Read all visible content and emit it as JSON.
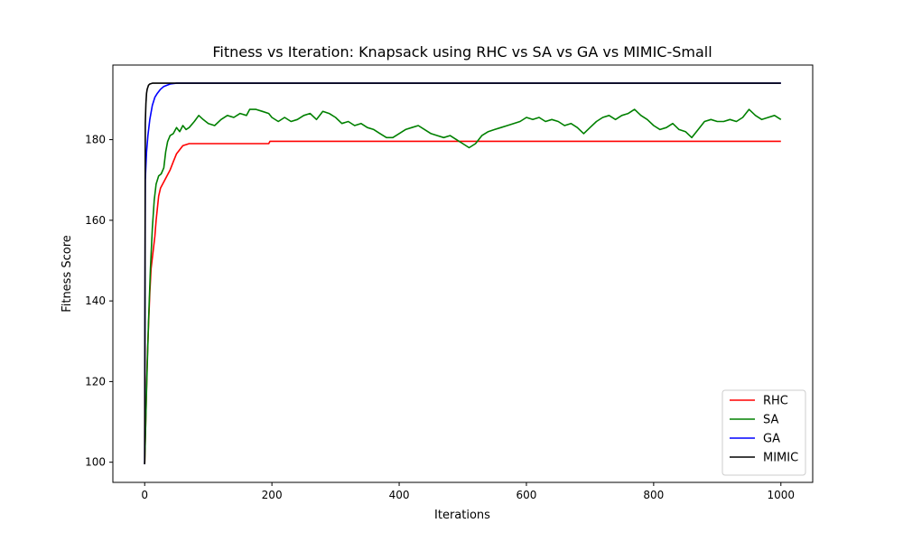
{
  "chart_data": {
    "type": "line",
    "title": "Fitness vs Iteration: Knapsack using RHC vs SA vs GA vs MIMIC-Small",
    "xlabel": "Iterations",
    "ylabel": "Fitness Score",
    "xlim": [
      -50,
      1050
    ],
    "ylim": [
      95,
      198.5
    ],
    "xticks": [
      0,
      200,
      400,
      600,
      800,
      1000
    ],
    "yticks": [
      100,
      120,
      140,
      160,
      180
    ],
    "grid": false,
    "legend_position": "lower-right",
    "series": [
      {
        "name": "RHC",
        "color": "#ff0000",
        "points": [
          [
            0,
            99.5
          ],
          [
            2,
            112
          ],
          [
            4,
            125
          ],
          [
            6,
            134
          ],
          [
            8,
            142
          ],
          [
            10,
            148
          ],
          [
            13,
            152
          ],
          [
            16,
            156
          ],
          [
            18,
            160
          ],
          [
            20,
            163
          ],
          [
            22,
            166
          ],
          [
            25,
            168
          ],
          [
            30,
            169.5
          ],
          [
            35,
            171
          ],
          [
            40,
            172.5
          ],
          [
            45,
            174.5
          ],
          [
            50,
            176.5
          ],
          [
            55,
            177.5
          ],
          [
            60,
            178.5
          ],
          [
            70,
            179
          ],
          [
            100,
            179
          ],
          [
            150,
            179
          ],
          [
            195,
            179
          ],
          [
            197,
            179.6
          ],
          [
            300,
            179.6
          ],
          [
            500,
            179.6
          ],
          [
            800,
            179.6
          ],
          [
            1000,
            179.6
          ]
        ]
      },
      {
        "name": "SA",
        "color": "#008000",
        "points": [
          [
            0,
            99.5
          ],
          [
            3,
            118
          ],
          [
            6,
            135
          ],
          [
            9,
            148
          ],
          [
            12,
            158
          ],
          [
            15,
            165
          ],
          [
            18,
            169
          ],
          [
            22,
            171
          ],
          [
            26,
            171.5
          ],
          [
            30,
            173
          ],
          [
            33,
            177
          ],
          [
            36,
            179.5
          ],
          [
            40,
            181
          ],
          [
            45,
            181.5
          ],
          [
            50,
            183
          ],
          [
            55,
            182
          ],
          [
            60,
            183.5
          ],
          [
            65,
            182.5
          ],
          [
            70,
            183
          ],
          [
            78,
            184.5
          ],
          [
            85,
            186
          ],
          [
            92,
            185
          ],
          [
            100,
            184
          ],
          [
            110,
            183.5
          ],
          [
            120,
            185
          ],
          [
            130,
            186
          ],
          [
            140,
            185.5
          ],
          [
            150,
            186.5
          ],
          [
            160,
            186
          ],
          [
            165,
            187.5
          ],
          [
            175,
            187.5
          ],
          [
            185,
            187
          ],
          [
            195,
            186.5
          ],
          [
            200,
            185.5
          ],
          [
            210,
            184.5
          ],
          [
            220,
            185.5
          ],
          [
            230,
            184.5
          ],
          [
            240,
            185
          ],
          [
            250,
            186
          ],
          [
            260,
            186.5
          ],
          [
            270,
            185
          ],
          [
            280,
            187
          ],
          [
            290,
            186.5
          ],
          [
            300,
            185.5
          ],
          [
            310,
            184
          ],
          [
            320,
            184.5
          ],
          [
            330,
            183.5
          ],
          [
            340,
            184
          ],
          [
            350,
            183
          ],
          [
            360,
            182.5
          ],
          [
            370,
            181.5
          ],
          [
            380,
            180.5
          ],
          [
            390,
            180.5
          ],
          [
            400,
            181.5
          ],
          [
            410,
            182.5
          ],
          [
            420,
            183
          ],
          [
            430,
            183.5
          ],
          [
            440,
            182.5
          ],
          [
            450,
            181.5
          ],
          [
            460,
            181
          ],
          [
            470,
            180.5
          ],
          [
            480,
            181
          ],
          [
            490,
            180
          ],
          [
            500,
            179
          ],
          [
            510,
            178
          ],
          [
            520,
            179
          ],
          [
            530,
            181
          ],
          [
            540,
            182
          ],
          [
            550,
            182.5
          ],
          [
            560,
            183
          ],
          [
            570,
            183.5
          ],
          [
            580,
            184
          ],
          [
            590,
            184.5
          ],
          [
            600,
            185.5
          ],
          [
            610,
            185
          ],
          [
            620,
            185.5
          ],
          [
            630,
            184.5
          ],
          [
            640,
            185
          ],
          [
            650,
            184.5
          ],
          [
            660,
            183.5
          ],
          [
            670,
            184
          ],
          [
            680,
            183
          ],
          [
            690,
            181.5
          ],
          [
            700,
            183
          ],
          [
            710,
            184.5
          ],
          [
            720,
            185.5
          ],
          [
            730,
            186
          ],
          [
            740,
            185
          ],
          [
            750,
            186
          ],
          [
            760,
            186.5
          ],
          [
            770,
            187.5
          ],
          [
            780,
            186
          ],
          [
            790,
            185
          ],
          [
            800,
            183.5
          ],
          [
            810,
            182.5
          ],
          [
            820,
            183
          ],
          [
            830,
            184
          ],
          [
            840,
            182.5
          ],
          [
            850,
            182
          ],
          [
            860,
            180.5
          ],
          [
            870,
            182.5
          ],
          [
            880,
            184.5
          ],
          [
            890,
            185
          ],
          [
            900,
            184.5
          ],
          [
            910,
            184.5
          ],
          [
            920,
            185
          ],
          [
            930,
            184.5
          ],
          [
            940,
            185.5
          ],
          [
            950,
            187.5
          ],
          [
            960,
            186
          ],
          [
            970,
            185
          ],
          [
            980,
            185.5
          ],
          [
            990,
            186
          ],
          [
            1000,
            185
          ]
        ]
      },
      {
        "name": "GA",
        "color": "#0000ff",
        "points": [
          [
            0,
            99.5
          ],
          [
            1,
            170
          ],
          [
            3,
            177
          ],
          [
            5,
            181
          ],
          [
            8,
            185
          ],
          [
            12,
            188.5
          ],
          [
            16,
            190.5
          ],
          [
            20,
            191.5
          ],
          [
            25,
            192.5
          ],
          [
            30,
            193.2
          ],
          [
            40,
            193.8
          ],
          [
            50,
            194
          ],
          [
            100,
            194
          ],
          [
            500,
            194
          ],
          [
            1000,
            194
          ]
        ]
      },
      {
        "name": "MIMIC",
        "color": "#000000",
        "points": [
          [
            0,
            99.5
          ],
          [
            1,
            184
          ],
          [
            2,
            189
          ],
          [
            3,
            191.5
          ],
          [
            4,
            192.5
          ],
          [
            6,
            193.5
          ],
          [
            8,
            193.8
          ],
          [
            12,
            194
          ],
          [
            100,
            194
          ],
          [
            500,
            194
          ],
          [
            1000,
            194
          ]
        ]
      }
    ]
  }
}
